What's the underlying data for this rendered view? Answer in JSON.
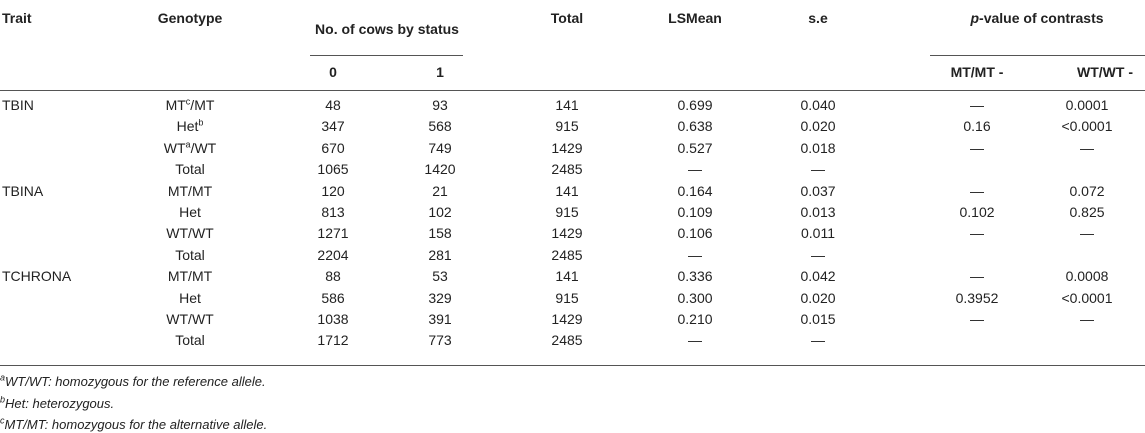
{
  "table": {
    "header": {
      "trait": "Trait",
      "genotype": "Genotype",
      "cows": "No. of cows by status",
      "total": "Total",
      "lsmean": "LSMean",
      "se": "s.e",
      "pvalue": {
        "italic": "p",
        "text": "-value of contrasts"
      },
      "status": [
        "0",
        "1"
      ],
      "contrasts": [
        "MT/MT -",
        "WT/WT -"
      ]
    },
    "rows": [
      [
        "TBIN",
        {
          "base": "MT",
          "sup": "c",
          "tail": "/MT"
        },
        "48",
        "93",
        "141",
        "0.699",
        "0.040",
        "—",
        "0.0001"
      ],
      [
        null,
        {
          "base": "Het",
          "sup": "b"
        },
        "347",
        "568",
        "915",
        "0.638",
        "0.020",
        "0.16",
        "<0.0001"
      ],
      [
        null,
        {
          "base": "WT",
          "sup": "a",
          "tail": "/WT"
        },
        "670",
        "749",
        "1429",
        "0.527",
        "0.018",
        "—",
        "—"
      ],
      [
        null,
        "Total",
        "1065",
        "1420",
        "2485",
        "—",
        "—",
        null,
        null
      ],
      [
        "TBINA",
        "MT/MT",
        "120",
        "21",
        "141",
        "0.164",
        "0.037",
        "—",
        "0.072"
      ],
      [
        null,
        "Het",
        "813",
        "102",
        "915",
        "0.109",
        "0.013",
        "0.102",
        "0.825"
      ],
      [
        null,
        "WT/WT",
        "1271",
        "158",
        "1429",
        "0.106",
        "0.011",
        "—",
        "—"
      ],
      [
        null,
        "Total",
        "2204",
        "281",
        "2485",
        "—",
        "—",
        null,
        null
      ],
      [
        "TCHRONA",
        "MT/MT",
        "88",
        "53",
        "141",
        "0.336",
        "0.042",
        "—",
        "0.0008"
      ],
      [
        null,
        "Het",
        "586",
        "329",
        "915",
        "0.300",
        "0.020",
        "0.3952",
        "<0.0001"
      ],
      [
        null,
        "WT/WT",
        "1038",
        "391",
        "1429",
        "0.210",
        "0.015",
        "—",
        "—"
      ],
      [
        null,
        "Total",
        "1712",
        "773",
        "2485",
        "—",
        "—",
        null,
        null
      ]
    ]
  },
  "footnotes": [
    {
      "mark": "a",
      "text": "WT/WT: homozygous for the reference allele."
    },
    {
      "mark": "b",
      "text": "Het: heterozygous."
    },
    {
      "mark": "c",
      "text": "MT/MT: homozygous for the alternative allele."
    }
  ]
}
